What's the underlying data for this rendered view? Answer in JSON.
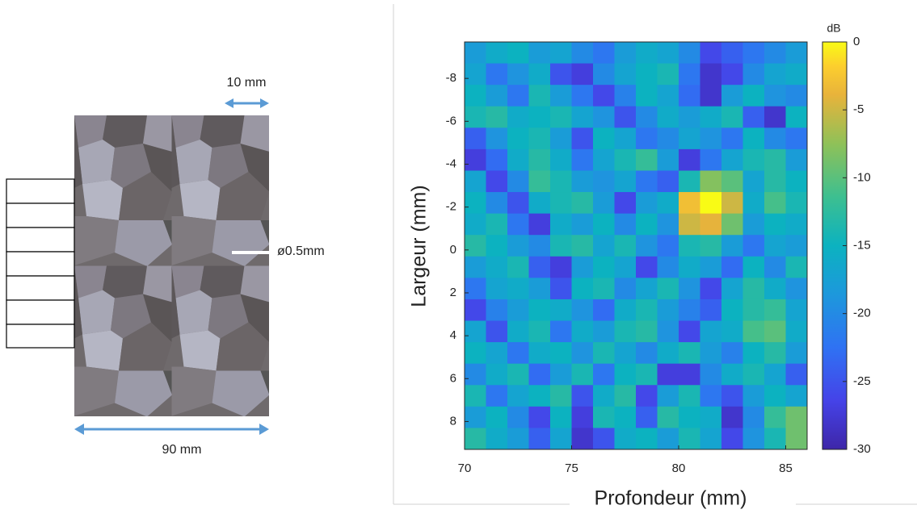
{
  "diagram": {
    "top_dimension": "10 mm",
    "bottom_dimension": "90 mm",
    "hole_label": "ø0.5mm"
  },
  "chart_data": {
    "type": "heatmap",
    "xlabel": "Profondeur (mm)",
    "ylabel": "Largeur (mm)",
    "colorbar_label": "dB",
    "xlim": [
      70,
      86
    ],
    "ylim": [
      -9.7,
      9.3
    ],
    "y_inverted": true,
    "xticks": [
      70,
      75,
      80,
      85
    ],
    "yticks": [
      -8,
      -6,
      -4,
      -2,
      0,
      2,
      4,
      6,
      8
    ],
    "clim": [
      -30,
      0
    ],
    "cticks": [
      0,
      -5,
      -10,
      -15,
      -20,
      -25,
      -30
    ],
    "colormap": "parula",
    "x": [
      70.5,
      71.5,
      72.5,
      73.5,
      74.5,
      75.5,
      76.5,
      77.5,
      78.5,
      79.5,
      80.5,
      81.5,
      82.5,
      83.5,
      84.5,
      85.5
    ],
    "y": [
      -9.2,
      -8.2,
      -7.2,
      -6.2,
      -5.2,
      -4.2,
      -3.2,
      -2.2,
      -1.2,
      -0.2,
      0.8,
      1.8,
      2.8,
      3.8,
      4.8,
      5.8,
      6.8,
      7.8,
      8.8
    ],
    "z": [
      [
        -18,
        -16,
        -15,
        -18,
        -17,
        -20,
        -22,
        -18,
        -16,
        -17,
        -20,
        -26,
        -24,
        -22,
        -20,
        -18
      ],
      [
        -17,
        -22,
        -19,
        -16,
        -25,
        -27,
        -20,
        -17,
        -15,
        -14,
        -22,
        -28,
        -26,
        -20,
        -17,
        -16
      ],
      [
        -15,
        -18,
        -22,
        -14,
        -18,
        -22,
        -26,
        -21,
        -15,
        -17,
        -23,
        -28,
        -18,
        -15,
        -19,
        -20
      ],
      [
        -14,
        -13,
        -16,
        -15,
        -14,
        -17,
        -19,
        -25,
        -20,
        -16,
        -18,
        -16,
        -14,
        -24,
        -28,
        -15
      ],
      [
        -24,
        -19,
        -15,
        -14,
        -18,
        -25,
        -15,
        -17,
        -22,
        -20,
        -17,
        -19,
        -22,
        -15,
        -20,
        -22
      ],
      [
        -27,
        -23,
        -16,
        -13,
        -16,
        -22,
        -17,
        -14,
        -12,
        -18,
        -27,
        -22,
        -17,
        -14,
        -13,
        -18
      ],
      [
        -17,
        -26,
        -20,
        -12,
        -14,
        -18,
        -19,
        -17,
        -22,
        -24,
        -14,
        -8,
        -10,
        -17,
        -13,
        -15
      ],
      [
        -15,
        -20,
        -25,
        -16,
        -14,
        -13,
        -18,
        -26,
        -18,
        -16,
        -3,
        0,
        -5,
        -16,
        -11,
        -14
      ],
      [
        -16,
        -14,
        -22,
        -27,
        -16,
        -18,
        -15,
        -20,
        -15,
        -19,
        -5,
        -4,
        -9,
        -18,
        -15,
        -16
      ],
      [
        -13,
        -15,
        -18,
        -20,
        -14,
        -13,
        -17,
        -14,
        -19,
        -22,
        -14,
        -13,
        -18,
        -22,
        -17,
        -18
      ],
      [
        -18,
        -16,
        -14,
        -24,
        -27,
        -18,
        -15,
        -17,
        -26,
        -20,
        -16,
        -18,
        -23,
        -15,
        -20,
        -14
      ],
      [
        -22,
        -17,
        -16,
        -18,
        -25,
        -15,
        -14,
        -20,
        -17,
        -14,
        -19,
        -26,
        -17,
        -13,
        -16,
        -19
      ],
      [
        -26,
        -21,
        -18,
        -15,
        -16,
        -19,
        -23,
        -16,
        -14,
        -18,
        -21,
        -24,
        -15,
        -13,
        -12,
        -17
      ],
      [
        -17,
        -25,
        -16,
        -14,
        -22,
        -16,
        -18,
        -14,
        -13,
        -19,
        -26,
        -17,
        -16,
        -11,
        -10,
        -16
      ],
      [
        -15,
        -17,
        -22,
        -16,
        -15,
        -19,
        -14,
        -17,
        -20,
        -16,
        -14,
        -18,
        -21,
        -15,
        -13,
        -18
      ],
      [
        -20,
        -16,
        -14,
        -23,
        -18,
        -14,
        -22,
        -15,
        -14,
        -27,
        -27,
        -20,
        -16,
        -14,
        -17,
        -24
      ],
      [
        -14,
        -22,
        -17,
        -15,
        -13,
        -25,
        -16,
        -13,
        -26,
        -18,
        -14,
        -22,
        -25,
        -18,
        -15,
        -17
      ],
      [
        -18,
        -15,
        -20,
        -26,
        -15,
        -27,
        -14,
        -15,
        -24,
        -13,
        -15,
        -16,
        -28,
        -20,
        -12,
        -9
      ],
      [
        -13,
        -16,
        -18,
        -24,
        -17,
        -28,
        -25,
        -16,
        -15,
        -18,
        -14,
        -17,
        -26,
        -19,
        -14,
        -9
      ]
    ]
  }
}
